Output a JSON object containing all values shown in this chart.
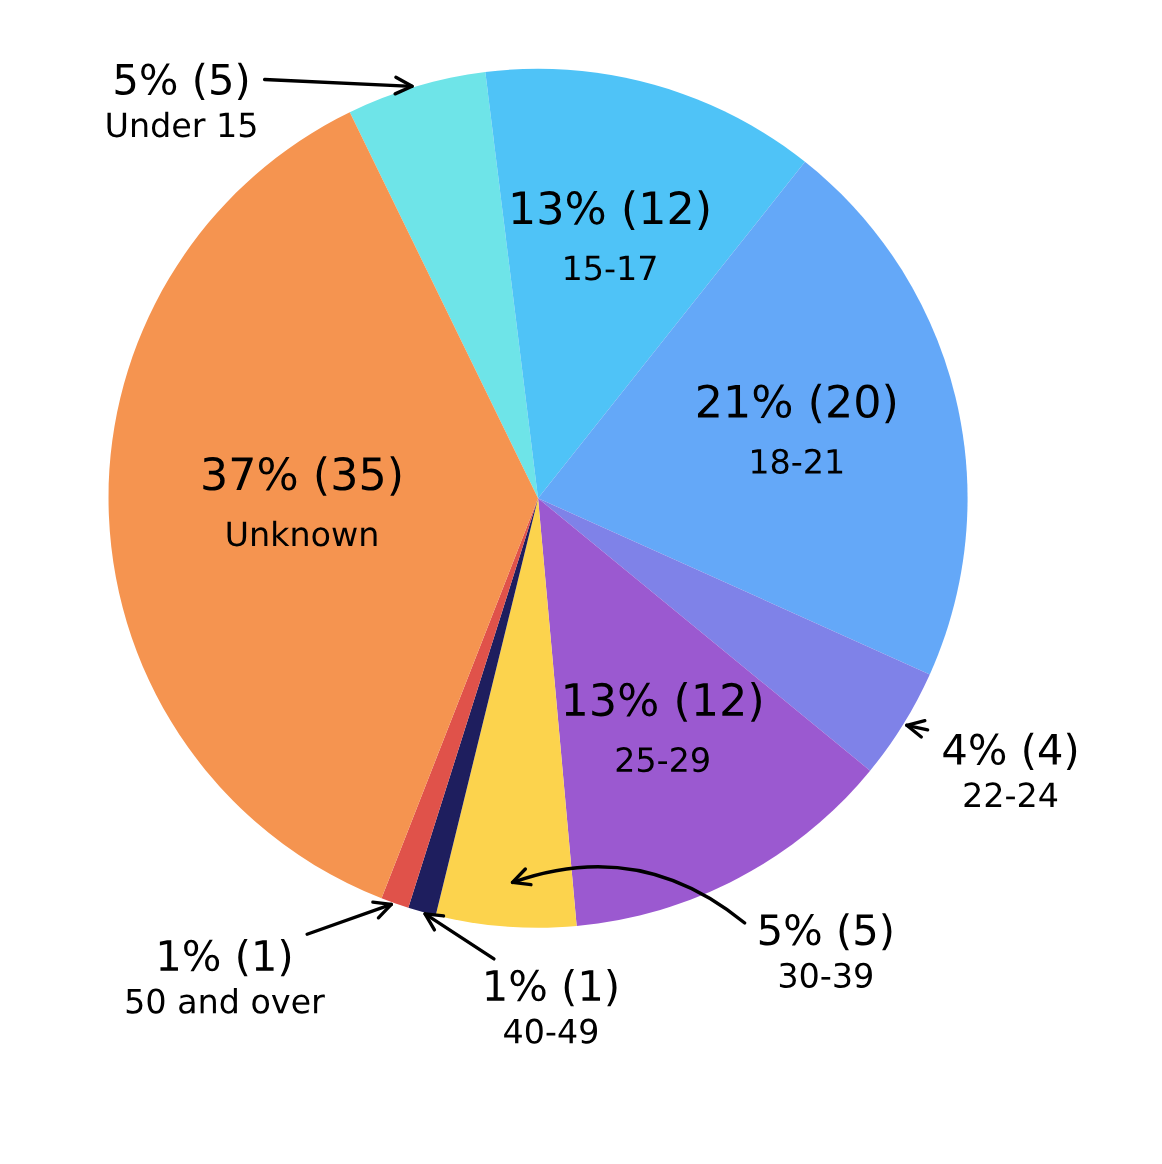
{
  "chart_data": {
    "type": "pie",
    "categories": [
      "Under 15",
      "15-17",
      "18-21",
      "22-24",
      "25-29",
      "30-39",
      "40-49",
      "50 and over",
      "Unknown"
    ],
    "values": [
      5,
      12,
      20,
      4,
      12,
      5,
      1,
      1,
      35
    ],
    "value_labels": [
      "5% (5)",
      "13% (12)",
      "21% (20)",
      "4% (4)",
      "13% (12)",
      "5% (5)",
      "1% (1)",
      "1% (1)",
      "37% (35)"
    ],
    "colors": [
      "#6ee4e8",
      "#4fc3f7",
      "#64a8f8",
      "#7f82e8",
      "#9b59d0",
      "#fcd34d",
      "#1e1e5e",
      "#e0524a",
      "#f59450"
    ],
    "legend": false
  }
}
